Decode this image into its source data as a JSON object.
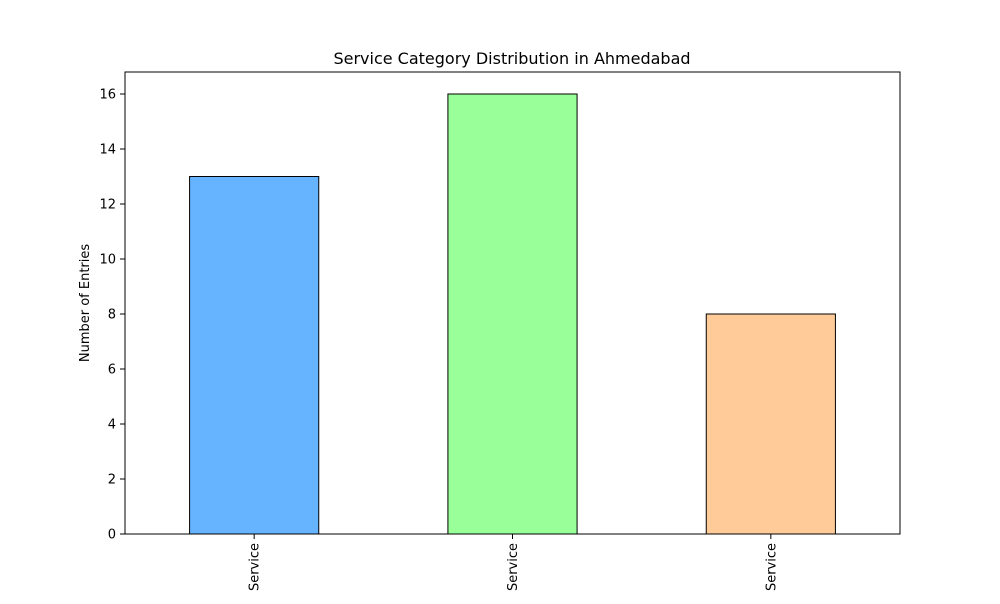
{
  "chart_data": {
    "type": "bar",
    "title": "Service Category Distribution in Ahmedabad",
    "xlabel": "",
    "ylabel": "Number of Entries",
    "categories": [
      "Service",
      "Service",
      "Service"
    ],
    "values": [
      13,
      16,
      8
    ],
    "colors": [
      "#66b3ff",
      "#99ff99",
      "#ffcc99"
    ],
    "edge_color": "#000000",
    "ylim": [
      0,
      16.8
    ],
    "yticks": [
      0,
      2,
      4,
      6,
      8,
      10,
      12,
      14,
      16
    ],
    "ytick_labels": [
      "0",
      "2",
      "4",
      "6",
      "8",
      "10",
      "12",
      "14",
      "16"
    ],
    "xtick_rotation": "vertical",
    "grid": false,
    "legend": "none"
  }
}
